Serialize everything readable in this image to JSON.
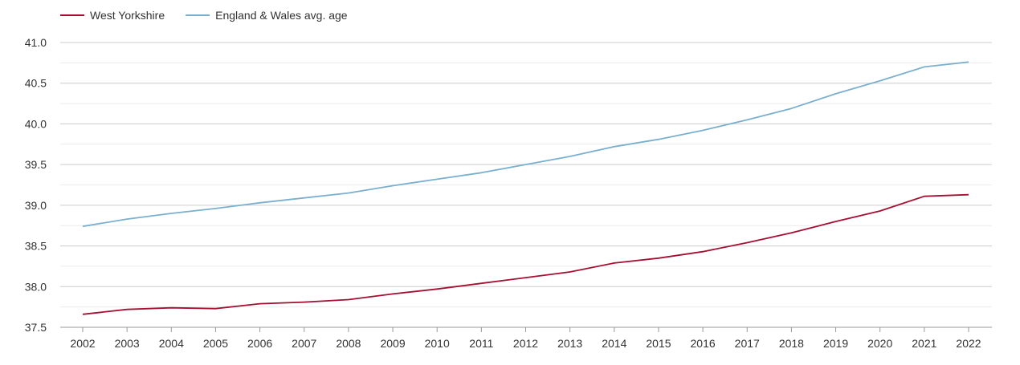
{
  "chart_data": {
    "type": "line",
    "title": "",
    "xlabel": "",
    "ylabel": "",
    "x": [
      "2002",
      "2003",
      "2004",
      "2005",
      "2006",
      "2007",
      "2008",
      "2009",
      "2010",
      "2011",
      "2012",
      "2013",
      "2014",
      "2015",
      "2016",
      "2017",
      "2018",
      "2019",
      "2020",
      "2021",
      "2022"
    ],
    "yticks": [
      "37.5",
      "38.0",
      "38.5",
      "39.0",
      "39.5",
      "40.0",
      "40.5",
      "41.0"
    ],
    "ylim": [
      37.5,
      41.0
    ],
    "grid": true,
    "legend_position": "top-left",
    "series": [
      {
        "name": "West Yorkshire",
        "color": "#a50f32",
        "values": [
          37.66,
          37.72,
          37.74,
          37.73,
          37.79,
          37.81,
          37.84,
          37.91,
          37.97,
          38.04,
          38.11,
          38.18,
          38.29,
          38.35,
          38.43,
          38.54,
          38.66,
          38.8,
          38.93,
          39.11,
          39.13
        ]
      },
      {
        "name": "England & Wales avg. age",
        "color": "#7ab0cf",
        "values": [
          38.74,
          38.83,
          38.9,
          38.96,
          39.03,
          39.09,
          39.15,
          39.24,
          39.32,
          39.4,
          39.5,
          39.6,
          39.72,
          39.81,
          39.92,
          40.05,
          40.19,
          40.37,
          40.53,
          40.7,
          40.76
        ]
      }
    ]
  }
}
